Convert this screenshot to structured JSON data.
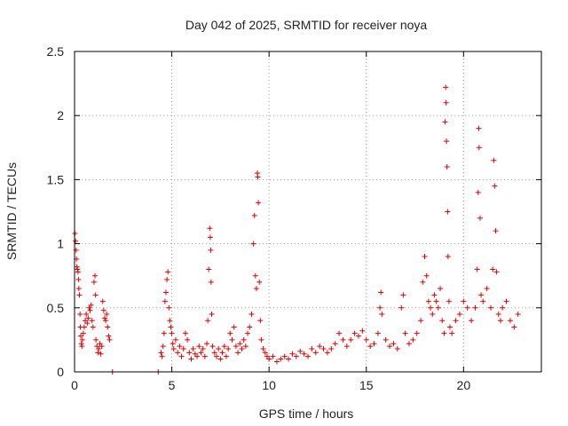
{
  "chart_data": {
    "type": "scatter",
    "title": "Day 042 of 2025, SRMTID for receiver noya",
    "xlabel": "GPS time / hours",
    "ylabel": "SRMTID / TECUs",
    "xlim": [
      0,
      24
    ],
    "ylim": [
      0,
      2.5
    ],
    "x_ticks": [
      0,
      5,
      10,
      15,
      20
    ],
    "x_tick_labels": [
      "0",
      "5",
      "10",
      "15",
      "20"
    ],
    "y_ticks": [
      0,
      0.5,
      1,
      1.5,
      2,
      2.5
    ],
    "y_tick_labels": [
      "0",
      "0.5",
      "1",
      "1.5",
      "2",
      "2.5"
    ],
    "grid": true,
    "marker": "+",
    "color": "#e00000",
    "series": [
      {
        "name": "SRMTID",
        "points": [
          [
            0.02,
            1.08
          ],
          [
            0.05,
            1.02
          ],
          [
            0.08,
            0.95
          ],
          [
            0.1,
            0.88
          ],
          [
            0.12,
            0.82
          ],
          [
            0.15,
            0.8
          ],
          [
            0.18,
            0.78
          ],
          [
            0.2,
            0.72
          ],
          [
            0.22,
            0.65
          ],
          [
            0.25,
            0.6
          ],
          [
            0.28,
            0.45
          ],
          [
            0.3,
            0.35
          ],
          [
            0.32,
            0.28
          ],
          [
            0.35,
            0.22
          ],
          [
            0.38,
            0.2
          ],
          [
            0.4,
            0.25
          ],
          [
            0.45,
            0.3
          ],
          [
            0.5,
            0.35
          ],
          [
            0.55,
            0.4
          ],
          [
            0.6,
            0.45
          ],
          [
            0.65,
            0.38
          ],
          [
            0.7,
            0.42
          ],
          [
            0.75,
            0.5
          ],
          [
            0.8,
            0.48
          ],
          [
            0.85,
            0.52
          ],
          [
            0.9,
            0.4
          ],
          [
            0.95,
            0.35
          ],
          [
            1.0,
            0.7
          ],
          [
            1.05,
            0.75
          ],
          [
            1.08,
            0.6
          ],
          [
            1.1,
            0.25
          ],
          [
            1.15,
            0.2
          ],
          [
            1.2,
            0.15
          ],
          [
            1.25,
            0.18
          ],
          [
            1.3,
            0.22
          ],
          [
            1.35,
            0.14
          ],
          [
            1.4,
            0.2
          ],
          [
            1.45,
            0.55
          ],
          [
            1.5,
            0.48
          ],
          [
            1.55,
            0.42
          ],
          [
            1.6,
            0.4
          ],
          [
            1.65,
            0.45
          ],
          [
            1.7,
            0.35
          ],
          [
            1.75,
            0.28
          ],
          [
            1.8,
            0.25
          ],
          [
            1.95,
            0.0
          ],
          [
            4.3,
            0.0
          ],
          [
            4.45,
            0.15
          ],
          [
            4.5,
            0.12
          ],
          [
            4.55,
            0.2
          ],
          [
            4.6,
            0.3
          ],
          [
            4.65,
            0.55
          ],
          [
            4.7,
            0.62
          ],
          [
            4.75,
            0.72
          ],
          [
            4.8,
            0.78
          ],
          [
            4.85,
            0.5
          ],
          [
            4.9,
            0.4
          ],
          [
            4.95,
            0.35
          ],
          [
            5.0,
            0.3
          ],
          [
            5.05,
            0.22
          ],
          [
            5.1,
            0.18
          ],
          [
            5.2,
            0.25
          ],
          [
            5.3,
            0.15
          ],
          [
            5.4,
            0.2
          ],
          [
            5.5,
            0.12
          ],
          [
            5.6,
            0.18
          ],
          [
            5.7,
            0.3
          ],
          [
            5.8,
            0.25
          ],
          [
            5.9,
            0.15
          ],
          [
            6.0,
            0.1
          ],
          [
            6.1,
            0.18
          ],
          [
            6.2,
            0.14
          ],
          [
            6.3,
            0.12
          ],
          [
            6.4,
            0.2
          ],
          [
            6.5,
            0.15
          ],
          [
            6.6,
            0.18
          ],
          [
            6.7,
            0.12
          ],
          [
            6.8,
            0.22
          ],
          [
            6.85,
            0.4
          ],
          [
            6.9,
            0.8
          ],
          [
            6.95,
            1.12
          ],
          [
            6.98,
            1.05
          ],
          [
            7.0,
            0.95
          ],
          [
            7.02,
            0.7
          ],
          [
            7.05,
            0.45
          ],
          [
            7.1,
            0.2
          ],
          [
            7.2,
            0.15
          ],
          [
            7.3,
            0.12
          ],
          [
            7.4,
            0.18
          ],
          [
            7.5,
            0.1
          ],
          [
            7.6,
            0.15
          ],
          [
            7.7,
            0.2
          ],
          [
            7.8,
            0.12
          ],
          [
            7.9,
            0.18
          ],
          [
            8.0,
            0.3
          ],
          [
            8.1,
            0.25
          ],
          [
            8.2,
            0.35
          ],
          [
            8.3,
            0.2
          ],
          [
            8.4,
            0.15
          ],
          [
            8.5,
            0.22
          ],
          [
            8.6,
            0.18
          ],
          [
            8.7,
            0.25
          ],
          [
            8.8,
            0.2
          ],
          [
            8.9,
            0.3
          ],
          [
            9.0,
            0.35
          ],
          [
            9.1,
            0.45
          ],
          [
            9.2,
            1.0
          ],
          [
            9.25,
            1.22
          ],
          [
            9.3,
            0.75
          ],
          [
            9.35,
            0.65
          ],
          [
            9.4,
            1.55
          ],
          [
            9.42,
            1.52
          ],
          [
            9.45,
            1.32
          ],
          [
            9.5,
            0.7
          ],
          [
            9.55,
            0.4
          ],
          [
            9.6,
            0.25
          ],
          [
            9.7,
            0.18
          ],
          [
            9.8,
            0.15
          ],
          [
            9.9,
            0.12
          ],
          [
            10.0,
            0.1
          ],
          [
            10.2,
            0.12
          ],
          [
            10.4,
            0.08
          ],
          [
            10.6,
            0.1
          ],
          [
            10.8,
            0.12
          ],
          [
            11.0,
            0.1
          ],
          [
            11.2,
            0.14
          ],
          [
            11.4,
            0.12
          ],
          [
            11.6,
            0.16
          ],
          [
            11.8,
            0.14
          ],
          [
            12.0,
            0.12
          ],
          [
            12.2,
            0.18
          ],
          [
            12.4,
            0.15
          ],
          [
            12.6,
            0.2
          ],
          [
            12.8,
            0.18
          ],
          [
            13.0,
            0.15
          ],
          [
            13.2,
            0.18
          ],
          [
            13.4,
            0.22
          ],
          [
            13.6,
            0.3
          ],
          [
            13.8,
            0.25
          ],
          [
            14.0,
            0.2
          ],
          [
            14.2,
            0.25
          ],
          [
            14.4,
            0.3
          ],
          [
            14.6,
            0.28
          ],
          [
            14.8,
            0.32
          ],
          [
            15.0,
            0.25
          ],
          [
            15.2,
            0.2
          ],
          [
            15.4,
            0.22
          ],
          [
            15.6,
            0.3
          ],
          [
            15.7,
            0.5
          ],
          [
            15.75,
            0.62
          ],
          [
            15.8,
            0.45
          ],
          [
            16.0,
            0.25
          ],
          [
            16.2,
            0.2
          ],
          [
            16.4,
            0.22
          ],
          [
            16.6,
            0.18
          ],
          [
            16.8,
            0.5
          ],
          [
            16.9,
            0.6
          ],
          [
            17.0,
            0.3
          ],
          [
            17.2,
            0.22
          ],
          [
            17.4,
            0.25
          ],
          [
            17.6,
            0.3
          ],
          [
            17.8,
            0.4
          ],
          [
            17.9,
            0.7
          ],
          [
            18.0,
            0.9
          ],
          [
            18.1,
            0.75
          ],
          [
            18.2,
            0.55
          ],
          [
            18.3,
            0.5
          ],
          [
            18.4,
            0.45
          ],
          [
            18.5,
            0.6
          ],
          [
            18.6,
            0.55
          ],
          [
            18.7,
            0.5
          ],
          [
            18.8,
            0.65
          ],
          [
            18.9,
            0.4
          ],
          [
            19.0,
            0.3
          ],
          [
            19.05,
            1.95
          ],
          [
            19.08,
            2.22
          ],
          [
            19.1,
            2.1
          ],
          [
            19.12,
            1.8
          ],
          [
            19.15,
            1.6
          ],
          [
            19.18,
            1.25
          ],
          [
            19.2,
            0.9
          ],
          [
            19.25,
            0.55
          ],
          [
            19.3,
            0.35
          ],
          [
            19.4,
            0.3
          ],
          [
            19.6,
            0.4
          ],
          [
            19.8,
            0.45
          ],
          [
            20.0,
            0.55
          ],
          [
            20.2,
            0.5
          ],
          [
            20.4,
            0.4
          ],
          [
            20.6,
            0.5
          ],
          [
            20.7,
            0.8
          ],
          [
            20.75,
            1.4
          ],
          [
            20.78,
            1.9
          ],
          [
            20.8,
            1.75
          ],
          [
            20.85,
            1.2
          ],
          [
            20.9,
            0.6
          ],
          [
            21.0,
            0.55
          ],
          [
            21.2,
            0.65
          ],
          [
            21.4,
            0.5
          ],
          [
            21.5,
            0.8
          ],
          [
            21.55,
            1.65
          ],
          [
            21.6,
            1.45
          ],
          [
            21.65,
            1.1
          ],
          [
            21.7,
            0.78
          ],
          [
            21.8,
            0.45
          ],
          [
            21.9,
            0.4
          ],
          [
            22.0,
            0.5
          ],
          [
            22.2,
            0.55
          ],
          [
            22.4,
            0.4
          ],
          [
            22.6,
            0.35
          ],
          [
            22.8,
            0.45
          ]
        ]
      }
    ]
  }
}
